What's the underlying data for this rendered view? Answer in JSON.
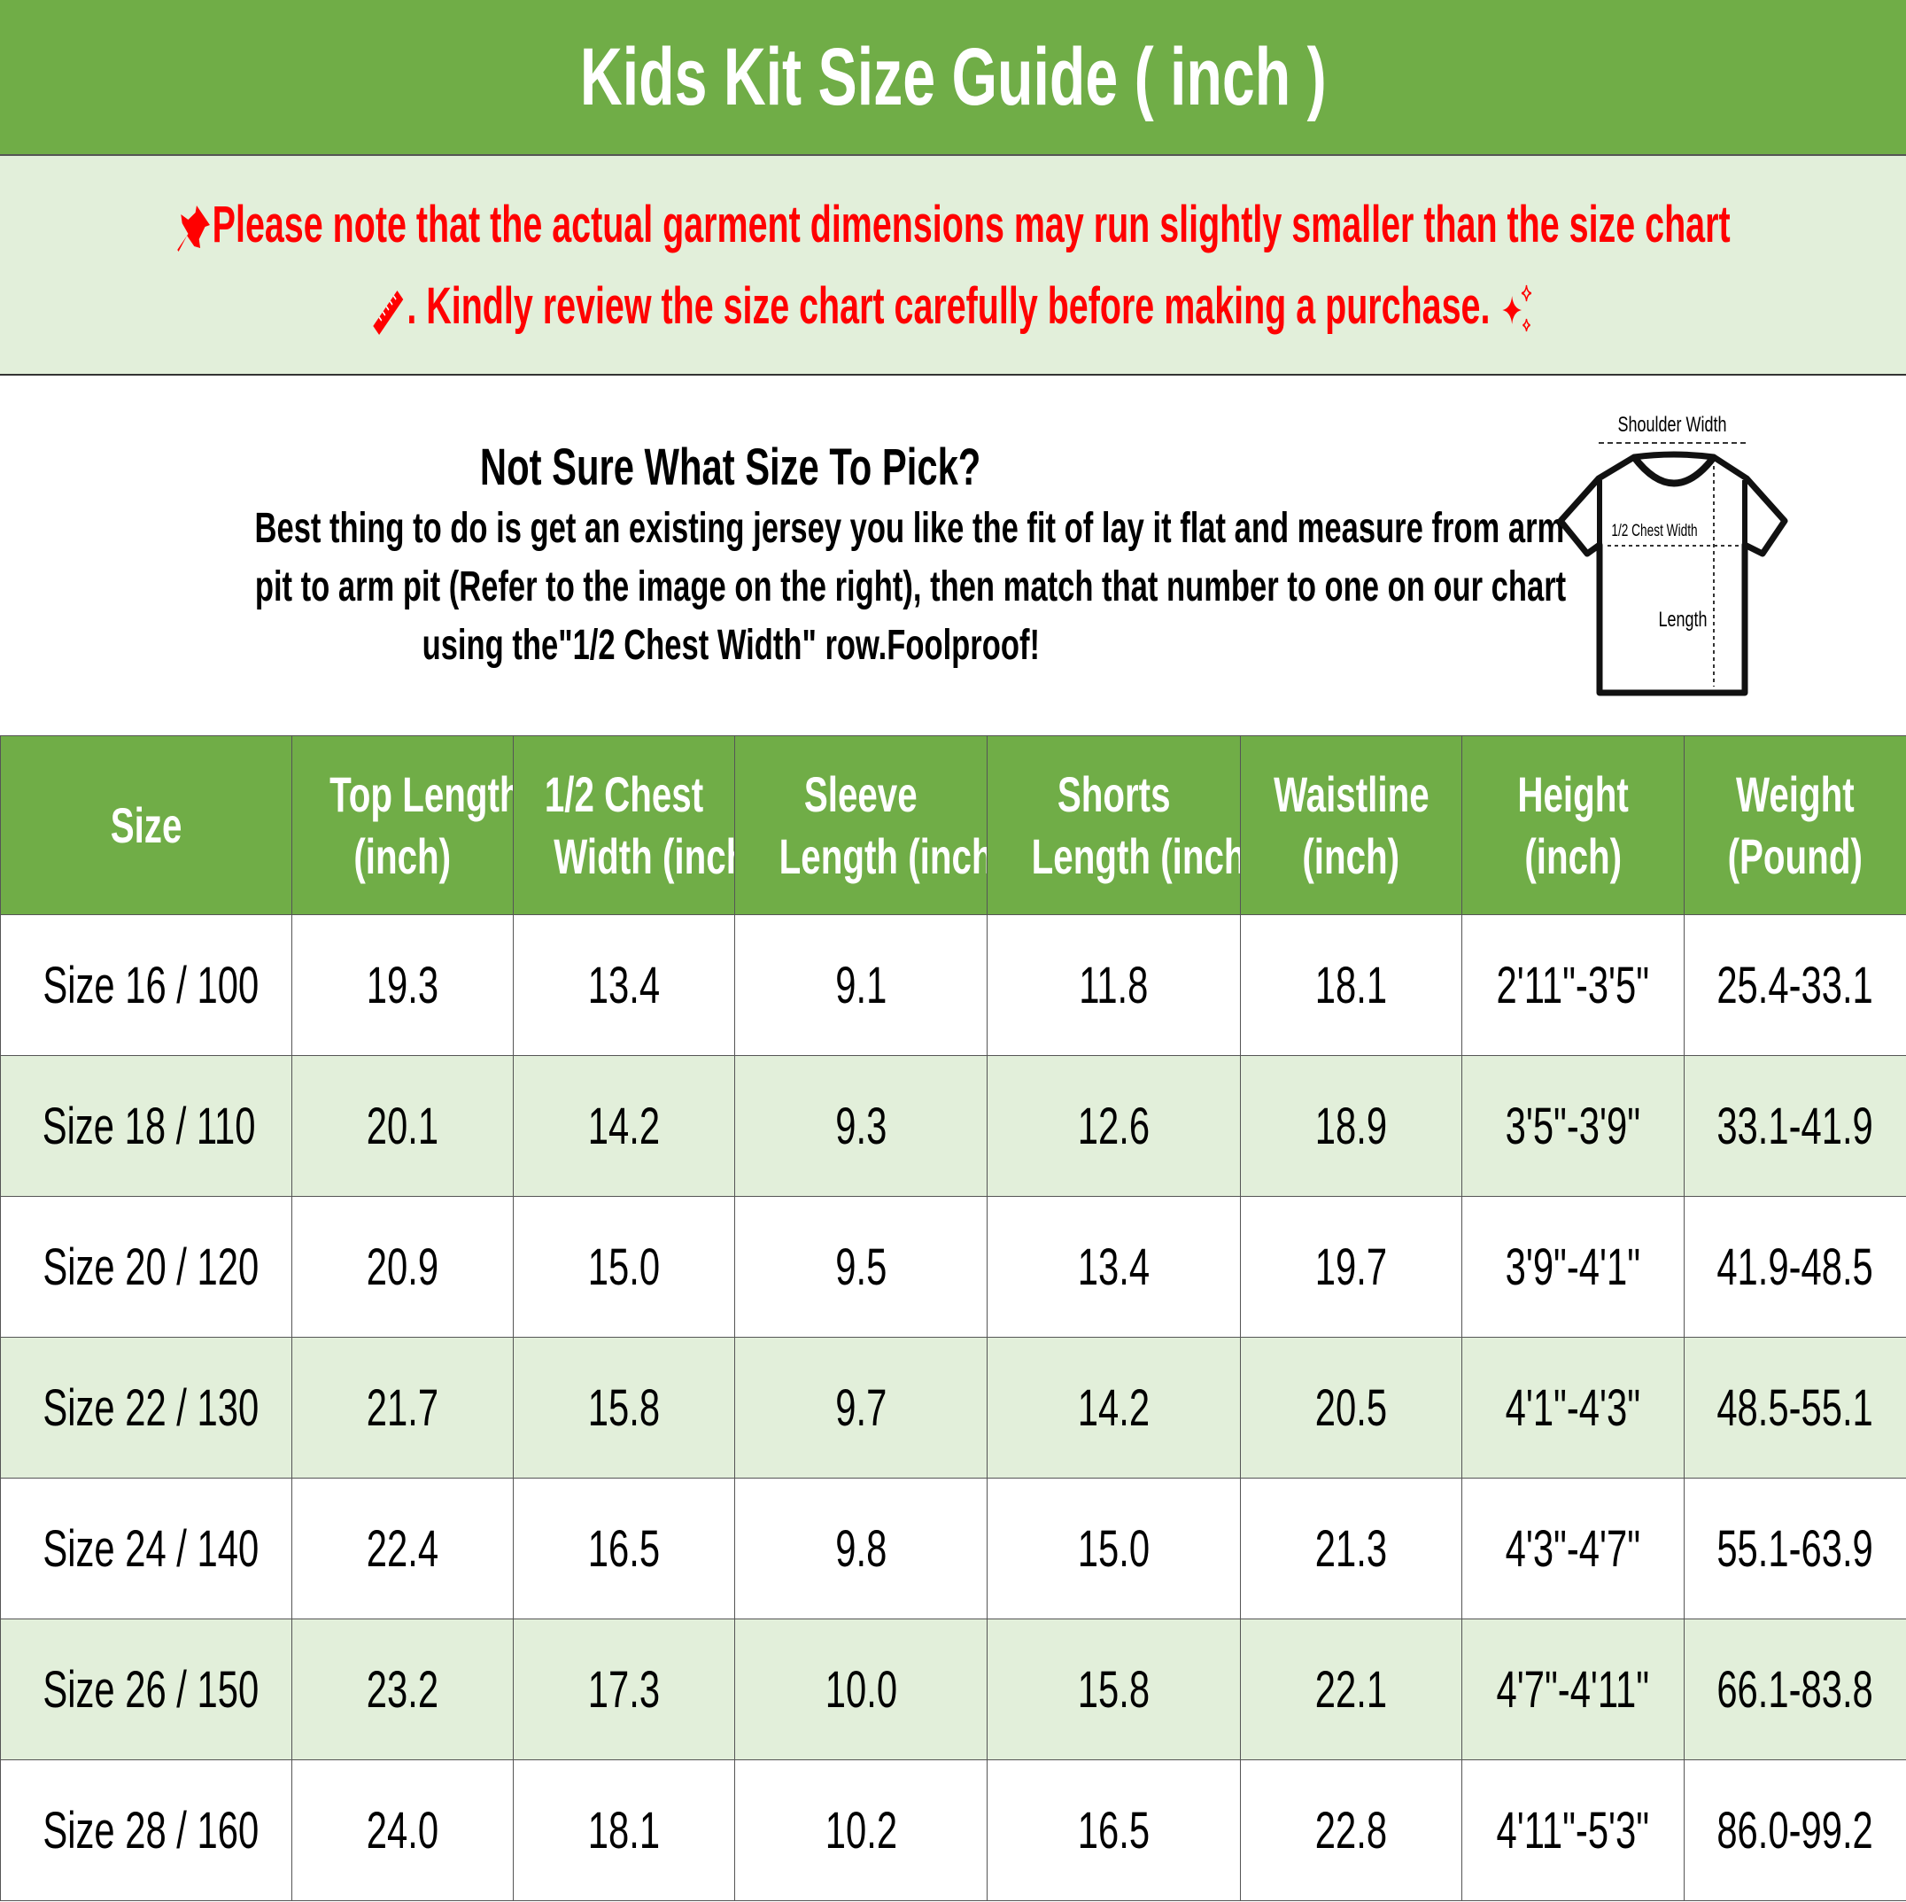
{
  "title": "Kids Kit Size Guide ( inch )",
  "note": {
    "line1_icon": "pushpin-icon",
    "line1": "Please note that the actual garment dimensions may run slightly smaller than the size chart",
    "line2_icon": "ruler-icon",
    "line2": ". Kindly review the size chart carefully before making a purchase.",
    "line2_end_icon": "sparkles-icon",
    "color": "#ff0000"
  },
  "info": {
    "question": "Not Sure What Size To Pick?",
    "body": [
      "Best thing to do is get an existing jersey you like the fit of lay it flat and measure from arm",
      "pit to arm pit (Refer to the image on the right), then match that number to one on our chart",
      "using the\"1/2 Chest Width\" row.Foolproof!"
    ],
    "diagram": {
      "shoulder": "Shoulder Width",
      "chest": "1/2 Chest Width",
      "length": "Length"
    }
  },
  "colors": {
    "header": "#70ad47",
    "band": "#e2efda"
  },
  "table": {
    "headers": [
      [
        "Size"
      ],
      [
        "Top Length",
        "(inch)"
      ],
      [
        "1/2 Chest",
        "Width (inch)"
      ],
      [
        "Sleeve",
        "Length (inch)"
      ],
      [
        "Shorts",
        "Length (inch)"
      ],
      [
        "Waistline",
        "(inch)"
      ],
      [
        "Height",
        "(inch)"
      ],
      [
        "Weight",
        "(Pound)"
      ]
    ],
    "rows": [
      [
        "Size 16 / 100",
        "19.3",
        "13.4",
        "9.1",
        "11.8",
        "18.1",
        "2'11\"-3'5\"",
        "25.4-33.1"
      ],
      [
        "Size 18 / 110",
        "20.1",
        "14.2",
        "9.3",
        "12.6",
        "18.9",
        "3'5\"-3'9\"",
        "33.1-41.9"
      ],
      [
        "Size 20 / 120",
        "20.9",
        "15.0",
        "9.5",
        "13.4",
        "19.7",
        "3'9\"-4'1\"",
        "41.9-48.5"
      ],
      [
        "Size 22 / 130",
        "21.7",
        "15.8",
        "9.7",
        "14.2",
        "20.5",
        "4'1\"-4'3\"",
        "48.5-55.1"
      ],
      [
        "Size 24 / 140",
        "22.4",
        "16.5",
        "9.8",
        "15.0",
        "21.3",
        "4'3\"-4'7\"",
        "55.1-63.9"
      ],
      [
        "Size 26 / 150",
        "23.2",
        "17.3",
        "10.0",
        "15.8",
        "22.1",
        "4'7\"-4'11\"",
        "66.1-83.8"
      ],
      [
        "Size 28 / 160",
        "24.0",
        "18.1",
        "10.2",
        "16.5",
        "22.8",
        "4'11\"-5'3\"",
        "86.0-99.2"
      ]
    ]
  }
}
